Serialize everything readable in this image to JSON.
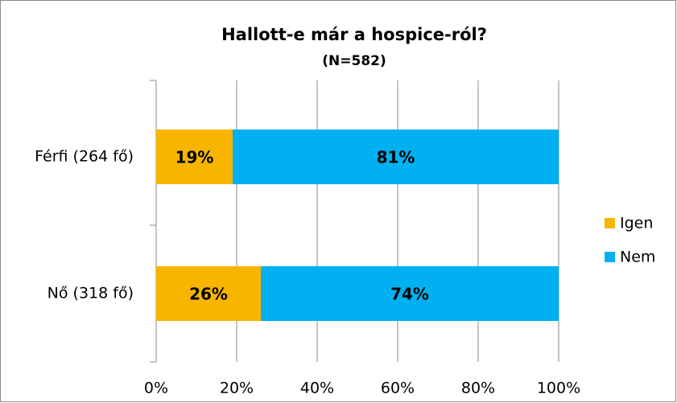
{
  "chart_data": {
    "type": "stacked-bar-horizontal",
    "title": "Hallott-e már a hospice-ról?",
    "subtitle": "(N=582)",
    "categories": [
      "Férfi (264 fő)",
      "Nő (318 fő)"
    ],
    "series": [
      {
        "name": "Igen",
        "color": "#f7b500",
        "values": [
          19,
          26
        ],
        "value_labels": [
          "19%",
          "26%"
        ]
      },
      {
        "name": "Nem",
        "color": "#00b0f0",
        "values": [
          81,
          74
        ],
        "value_labels": [
          "81%",
          "74%"
        ]
      }
    ],
    "xlim": [
      0,
      100
    ],
    "xticks": [
      {
        "value": 0,
        "label": "0%"
      },
      {
        "value": 20,
        "label": "20%"
      },
      {
        "value": 40,
        "label": "40%"
      },
      {
        "value": 60,
        "label": "60%"
      },
      {
        "value": 80,
        "label": "80%"
      },
      {
        "value": 100,
        "label": "100%"
      }
    ],
    "grid": true,
    "legend": "right"
  }
}
